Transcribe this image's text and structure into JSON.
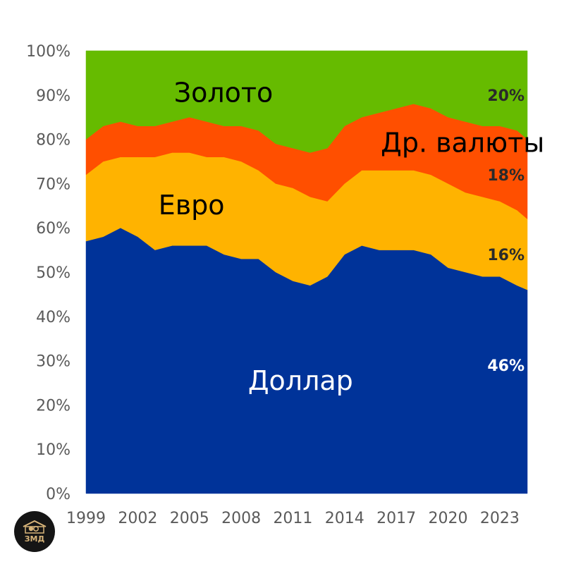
{
  "chart_data": {
    "type": "area",
    "stacked": true,
    "x": [
      1999,
      2000,
      2001,
      2002,
      2003,
      2004,
      2005,
      2006,
      2007,
      2008,
      2009,
      2010,
      2011,
      2012,
      2013,
      2014,
      2015,
      2016,
      2017,
      2018,
      2019,
      2020,
      2021,
      2022,
      2023,
      2024,
      2024.6
    ],
    "series": [
      {
        "name": "Доллар",
        "color": "#003399",
        "values": [
          57,
          58,
          60,
          58,
          55,
          56,
          56,
          56,
          54,
          53,
          53,
          50,
          48,
          47,
          49,
          54,
          56,
          55,
          55,
          55,
          54,
          51,
          50,
          49,
          49,
          47,
          46
        ]
      },
      {
        "name": "Евро",
        "color": "#ffb300",
        "values": [
          15,
          17,
          16,
          18,
          21,
          21,
          21,
          20,
          22,
          22,
          20,
          20,
          21,
          20,
          17,
          16,
          17,
          18,
          18,
          18,
          18,
          19,
          18,
          18,
          17,
          17,
          16
        ]
      },
      {
        "name": "Др. валюты",
        "color": "#ff4f00",
        "values": [
          8,
          8,
          8,
          7,
          7,
          7,
          8,
          8,
          7,
          8,
          9,
          9,
          9,
          10,
          12,
          13,
          12,
          13,
          14,
          15,
          15,
          15,
          16,
          16,
          17,
          18,
          18
        ]
      },
      {
        "name": "Золото",
        "color": "#66bb00",
        "values": [
          20,
          17,
          16,
          17,
          17,
          16,
          15,
          16,
          17,
          17,
          18,
          21,
          22,
          23,
          22,
          17,
          15,
          14,
          13,
          12,
          13,
          15,
          16,
          17,
          17,
          18,
          20
        ]
      }
    ],
    "x_ticks": [
      "1999",
      "2002",
      "2005",
      "2008",
      "2011",
      "2014",
      "2017",
      "2020",
      "2023"
    ],
    "x_tick_values": [
      1999,
      2002,
      2005,
      2008,
      2011,
      2014,
      2017,
      2020,
      2023
    ],
    "y_ticks": [
      "0%",
      "10%",
      "20%",
      "30%",
      "40%",
      "50%",
      "60%",
      "70%",
      "80%",
      "90%",
      "100%"
    ],
    "y_tick_values": [
      0,
      10,
      20,
      30,
      40,
      50,
      60,
      70,
      80,
      90,
      100
    ],
    "xlim": [
      1999,
      2024.6
    ],
    "ylim": [
      0,
      100
    ],
    "labels": [
      {
        "series": "Золото",
        "text": "Золото",
        "x": 2004.1,
        "y": 90.5,
        "color": "#000000"
      },
      {
        "series": "Др. валюты",
        "text": "Др. валюты",
        "x": 2016.1,
        "y": 79.2,
        "color": "#000000"
      },
      {
        "series": "Евро",
        "text": "Евро",
        "x": 2003.2,
        "y": 65.1,
        "color": "#000000"
      },
      {
        "series": "Доллар",
        "text": "Доллар",
        "x": 2008.4,
        "y": 25.5,
        "color": "#ffffff"
      }
    ],
    "end_labels": [
      {
        "series": "Золото",
        "text": "20%",
        "color": "#2a2a2a",
        "y": 90
      },
      {
        "series": "Др. валюты",
        "text": "18%",
        "color": "#2a2a2a",
        "y": 72
      },
      {
        "series": "Евро",
        "text": "16%",
        "color": "#2a2a2a",
        "y": 54
      },
      {
        "series": "Доллар",
        "text": "46%",
        "color": "#ffffff",
        "y": 29
      }
    ]
  },
  "logo": {
    "text": "ЗМД",
    "icon": "house-coins-icon"
  }
}
